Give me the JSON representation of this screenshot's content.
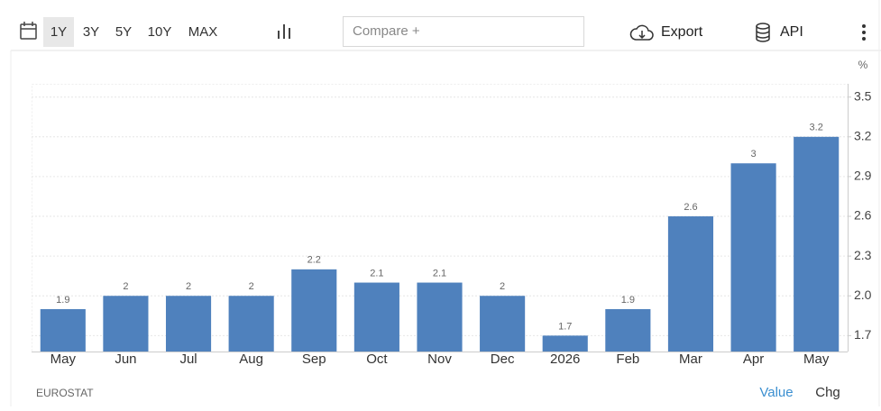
{
  "toolbar": {
    "ranges": [
      "1Y",
      "3Y",
      "5Y",
      "10Y",
      "MAX"
    ],
    "compare_placeholder": "Compare +",
    "export": "Export",
    "api": "API"
  },
  "chart_data": {
    "type": "bar",
    "unit": "%",
    "categories": [
      "May",
      "Jun",
      "Jul",
      "Aug",
      "Sep",
      "Oct",
      "Nov",
      "Dec",
      "2026",
      "Feb",
      "Mar",
      "Apr",
      "May"
    ],
    "values": [
      1.9,
      2,
      2,
      2,
      2.2,
      2.1,
      2.1,
      2,
      1.7,
      1.9,
      2.6,
      3,
      3.2
    ],
    "color": "#4f81bd",
    "ylim": [
      1.58,
      3.6
    ],
    "yticks": [
      1.7,
      {
        "value": 2,
        "label": "2.0"
      },
      2.3,
      2.6,
      2.9,
      3.2,
      3.5
    ],
    "grid": true,
    "source": "EUROSTAT"
  },
  "footer": {
    "value_tab": "Value",
    "chg_tab": "Chg"
  }
}
